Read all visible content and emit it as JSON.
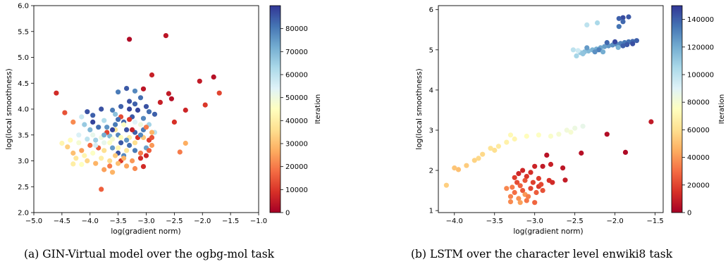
{
  "colors": {
    "colormap": [
      "#a50026",
      "#d73027",
      "#f46d43",
      "#fdae61",
      "#fee090",
      "#ffffbf",
      "#e0f3f8",
      "#abd9e9",
      "#74add1",
      "#4575b4",
      "#313695"
    ]
  },
  "captions": {
    "a": "(a) GIN-Virtual model over the ogbg-mol task",
    "b": "(b) LSTM over the character level enwiki8 task"
  },
  "chart_data": [
    {
      "type": "scatter",
      "xlabel": "log(gradient norm)",
      "ylabel": "log(local smoothness)",
      "xlim": [
        -5.0,
        -1.0
      ],
      "ylim": [
        2.0,
        6.0
      ],
      "xticks": [
        -5.0,
        -4.5,
        -4.0,
        -3.5,
        -3.0,
        -2.5,
        -2.0,
        -1.5,
        -1.0
      ],
      "xtick_labels": [
        "−5.0",
        "−4.5",
        "−4.0",
        "−3.5",
        "−3.0",
        "−2.5",
        "−2.0",
        "−1.5",
        "−1.0"
      ],
      "yticks": [
        2.0,
        2.5,
        3.0,
        3.5,
        4.0,
        4.5,
        5.0,
        5.5,
        6.0
      ],
      "ytick_labels": [
        "2.0",
        "2.5",
        "3.0",
        "3.5",
        "4.0",
        "4.5",
        "5.0",
        "5.5",
        "6.0"
      ],
      "grid": false,
      "colorbar": {
        "label": "Iteration",
        "range": [
          0,
          90000
        ],
        "ticks": [
          0,
          10000,
          20000,
          30000,
          40000,
          50000,
          60000,
          70000,
          80000
        ],
        "tick_labels": [
          "0",
          "10000",
          "20000",
          "30000",
          "40000",
          "50000",
          "60000",
          "70000",
          "80000"
        ]
      },
      "points": [
        [
          -3.3,
          5.35,
          2000
        ],
        [
          -2.65,
          5.42,
          4000
        ],
        [
          -2.9,
          4.66,
          6000
        ],
        [
          -1.8,
          4.62,
          3000
        ],
        [
          -2.05,
          4.54,
          5000
        ],
        [
          -4.6,
          4.31,
          8000
        ],
        [
          -1.7,
          4.31,
          12000
        ],
        [
          -2.6,
          4.3,
          5000
        ],
        [
          -2.55,
          4.2,
          3000
        ],
        [
          -2.75,
          4.13,
          6000
        ],
        [
          -3.05,
          4.39,
          4000
        ],
        [
          -1.95,
          4.08,
          10000
        ],
        [
          -2.3,
          3.98,
          7000
        ],
        [
          -2.5,
          3.75,
          9000
        ],
        [
          -2.3,
          3.34,
          27000
        ],
        [
          -2.4,
          3.17,
          20000
        ],
        [
          -4.45,
          3.93,
          14000
        ],
        [
          -4.3,
          3.75,
          22000
        ],
        [
          -3.05,
          2.89,
          8000
        ],
        [
          -3.8,
          2.45,
          16000
        ],
        [
          -3.75,
          2.83,
          25000
        ],
        [
          -3.6,
          2.78,
          28000
        ],
        [
          -4.3,
          2.94,
          40000
        ],
        [
          -4.15,
          2.93,
          45000
        ],
        [
          -4.5,
          3.34,
          42000
        ],
        [
          -3.35,
          4.4,
          85000
        ],
        [
          -3.5,
          4.33,
          80000
        ],
        [
          -3.2,
          4.35,
          78000
        ],
        [
          -3.1,
          4.22,
          82000
        ],
        [
          -3.3,
          4.15,
          86000
        ],
        [
          -3.45,
          4.05,
          84000
        ],
        [
          -3.6,
          3.98,
          80000
        ],
        [
          -3.8,
          4.0,
          86000
        ],
        [
          -3.95,
          3.88,
          84000
        ],
        [
          -3.15,
          3.98,
          88000
        ],
        [
          -2.95,
          3.95,
          82000
        ],
        [
          -3.05,
          3.82,
          78000
        ],
        [
          -3.25,
          3.85,
          85000
        ],
        [
          -3.4,
          3.75,
          83000
        ],
        [
          -3.55,
          3.7,
          80000
        ],
        [
          -3.7,
          3.65,
          76000
        ],
        [
          -3.85,
          3.65,
          82000
        ],
        [
          -4.0,
          3.6,
          70000
        ],
        [
          -3.35,
          3.6,
          86000
        ],
        [
          -3.2,
          3.55,
          84000
        ],
        [
          -3.05,
          3.6,
          80000
        ],
        [
          -3.5,
          3.5,
          78000
        ],
        [
          -3.65,
          3.48,
          70000
        ],
        [
          -3.45,
          3.35,
          85000
        ],
        [
          -3.3,
          3.3,
          82000
        ],
        [
          -3.6,
          3.25,
          75000
        ],
        [
          -3.2,
          3.2,
          80000
        ],
        [
          -3.5,
          3.15,
          86000
        ],
        [
          -3.4,
          3.1,
          78000
        ],
        [
          -3.0,
          3.25,
          74000
        ],
        [
          -3.9,
          3.4,
          65000
        ],
        [
          -4.05,
          3.42,
          60000
        ],
        [
          -4.2,
          3.5,
          55000
        ],
        [
          -4.1,
          3.7,
          66000
        ],
        [
          -4.15,
          3.85,
          58000
        ],
        [
          -3.75,
          3.78,
          62000
        ],
        [
          -3.55,
          3.9,
          68000
        ],
        [
          -2.95,
          3.7,
          64000
        ],
        [
          -2.85,
          3.55,
          60000
        ],
        [
          -3.1,
          3.7,
          50000
        ],
        [
          -3.25,
          3.6,
          6000
        ],
        [
          -3.15,
          3.45,
          9000
        ],
        [
          -2.95,
          3.4,
          11000
        ],
        [
          -3.45,
          3.0,
          10000
        ],
        [
          -3.1,
          3.05,
          8000
        ],
        [
          -3.0,
          3.1,
          7000
        ],
        [
          -3.7,
          3.55,
          12000
        ],
        [
          -3.85,
          3.25,
          15000
        ],
        [
          -4.0,
          3.3,
          18000
        ],
        [
          -4.15,
          3.2,
          25000
        ],
        [
          -4.3,
          3.15,
          30000
        ],
        [
          -4.4,
          3.27,
          33000
        ],
        [
          -4.25,
          3.05,
          38000
        ],
        [
          -4.1,
          3.1,
          42000
        ],
        [
          -3.95,
          3.15,
          46000
        ],
        [
          -3.8,
          3.05,
          40000
        ],
        [
          -3.65,
          3.0,
          35000
        ],
        [
          -3.5,
          2.95,
          30000
        ],
        [
          -3.35,
          2.9,
          26000
        ],
        [
          -3.2,
          2.85,
          22000
        ],
        [
          -3.65,
          2.9,
          20000
        ],
        [
          -3.9,
          2.95,
          28000
        ],
        [
          -4.05,
          3.0,
          34000
        ],
        [
          -4.2,
          3.35,
          48000
        ],
        [
          -4.35,
          3.4,
          44000
        ],
        [
          -3.95,
          3.5,
          52000
        ],
        [
          -3.8,
          3.45,
          50000
        ],
        [
          -3.65,
          3.35,
          46000
        ],
        [
          -3.5,
          3.25,
          42000
        ],
        [
          -3.35,
          3.2,
          38000
        ],
        [
          -3.2,
          3.35,
          36000
        ],
        [
          -3.05,
          3.45,
          32000
        ],
        [
          -2.9,
          3.55,
          28000
        ],
        [
          -2.9,
          3.3,
          24000
        ],
        [
          -3.0,
          3.65,
          20000
        ],
        [
          -3.3,
          3.45,
          40000
        ],
        [
          -3.45,
          3.45,
          44000
        ],
        [
          -3.6,
          3.42,
          48000
        ],
        [
          -3.75,
          3.35,
          52000
        ],
        [
          -3.9,
          3.3,
          56000
        ],
        [
          -3.75,
          3.2,
          36000
        ],
        [
          -3.55,
          3.1,
          32000
        ],
        [
          -3.4,
          3.05,
          28000
        ],
        [
          -3.25,
          3.0,
          24000
        ],
        [
          -3.1,
          3.15,
          20000
        ],
        [
          -2.95,
          3.2,
          16000
        ],
        [
          -2.9,
          3.45,
          14000
        ],
        [
          -3.3,
          3.8,
          10000
        ],
        [
          -3.45,
          3.85,
          13000
        ],
        [
          -3.55,
          3.6,
          38000
        ],
        [
          -3.4,
          3.7,
          46000
        ],
        [
          -3.2,
          3.75,
          54000
        ],
        [
          -3.95,
          3.75,
          88000
        ],
        [
          -4.05,
          3.95,
          86000
        ],
        [
          -3.3,
          4.0,
          88000
        ],
        [
          -3.2,
          4.1,
          84000
        ],
        [
          -3.0,
          4.05,
          86000
        ],
        [
          -2.85,
          3.9,
          84000
        ],
        [
          -3.5,
          3.8,
          82000
        ],
        [
          -3.1,
          3.5,
          78000
        ],
        [
          -3.35,
          3.4,
          76000
        ],
        [
          -3.75,
          3.5,
          72000
        ],
        [
          -3.6,
          3.6,
          88000
        ]
      ]
    },
    {
      "type": "scatter",
      "xlabel": "log(gradient norm)",
      "ylabel": "log(local smoothness)",
      "xlim": [
        -4.2,
        -1.4
      ],
      "ylim": [
        0.95,
        6.1
      ],
      "xticks": [
        -4.0,
        -3.5,
        -3.0,
        -2.5,
        -2.0,
        -1.5
      ],
      "xtick_labels": [
        "−4.0",
        "−3.5",
        "−3.0",
        "−2.5",
        "−2.0",
        "−1.5"
      ],
      "yticks": [
        1,
        2,
        3,
        4,
        5,
        6
      ],
      "ytick_labels": [
        "1",
        "2",
        "3",
        "4",
        "5",
        "6"
      ],
      "grid": false,
      "colorbar": {
        "label": "Iteration",
        "range": [
          0,
          150000
        ],
        "ticks": [
          0,
          20000,
          40000,
          60000,
          80000,
          100000,
          120000,
          140000
        ],
        "tick_labels": [
          "0",
          "20000",
          "40000",
          "60000",
          "80000",
          "100000",
          "120000",
          "140000"
        ]
      },
      "points": [
        [
          -1.9,
          5.8,
          145000
        ],
        [
          -1.95,
          5.78,
          140000
        ],
        [
          -1.83,
          5.82,
          142000
        ],
        [
          -1.9,
          5.7,
          138000
        ],
        [
          -1.95,
          5.58,
          135000
        ],
        [
          -2.35,
          5.62,
          100000
        ],
        [
          -2.22,
          5.67,
          105000
        ],
        [
          -1.73,
          5.23,
          140000
        ],
        [
          -1.78,
          5.21,
          138000
        ],
        [
          -1.83,
          5.2,
          136000
        ],
        [
          -1.88,
          5.18,
          134000
        ],
        [
          -1.93,
          5.16,
          132000
        ],
        [
          -1.98,
          5.14,
          130000
        ],
        [
          -2.03,
          5.12,
          128000
        ],
        [
          -2.08,
          5.1,
          126000
        ],
        [
          -2.13,
          5.08,
          124000
        ],
        [
          -2.18,
          5.05,
          122000
        ],
        [
          -2.23,
          5.02,
          120000
        ],
        [
          -2.28,
          5.0,
          118000
        ],
        [
          -2.33,
          4.97,
          116000
        ],
        [
          -2.38,
          4.95,
          114000
        ],
        [
          -2.43,
          4.93,
          110000
        ],
        [
          -2.48,
          4.85,
          106000
        ],
        [
          -2.52,
          5.0,
          100000
        ],
        [
          -2.46,
          4.98,
          95000
        ],
        [
          -1.78,
          5.15,
          144000
        ],
        [
          -1.85,
          5.13,
          142000
        ],
        [
          -1.9,
          5.1,
          140000
        ],
        [
          -2.0,
          5.2,
          146000
        ],
        [
          -2.1,
          5.18,
          138000
        ],
        [
          -2.2,
          5.0,
          132000
        ],
        [
          -2.25,
          4.95,
          128000
        ],
        [
          -2.35,
          5.05,
          125000
        ],
        [
          -2.15,
          4.95,
          120000
        ],
        [
          -1.96,
          5.06,
          118000
        ],
        [
          -2.4,
          4.9,
          112000
        ],
        [
          -1.55,
          3.21,
          8000
        ],
        [
          -2.1,
          2.9,
          4000
        ],
        [
          -1.87,
          2.45,
          3000
        ],
        [
          -2.42,
          2.43,
          5000
        ],
        [
          -2.85,
          2.38,
          6000
        ],
        [
          -2.65,
          2.06,
          7000
        ],
        [
          -2.62,
          1.76,
          9000
        ],
        [
          -2.8,
          2.15,
          10000
        ],
        [
          -2.9,
          2.1,
          8000
        ],
        [
          -3.0,
          2.1,
          11000
        ],
        [
          -3.05,
          1.95,
          14000
        ],
        [
          -3.2,
          1.92,
          12000
        ],
        [
          -3.1,
          1.85,
          16000
        ],
        [
          -2.95,
          1.8,
          18000
        ],
        [
          -2.82,
          1.75,
          15000
        ],
        [
          -2.78,
          1.7,
          13000
        ],
        [
          -2.95,
          1.6,
          17000
        ],
        [
          -3.05,
          1.55,
          20000
        ],
        [
          -3.15,
          1.5,
          25000
        ],
        [
          -3.25,
          1.45,
          30000
        ],
        [
          -3.3,
          1.35,
          35000
        ],
        [
          -3.2,
          1.3,
          38000
        ],
        [
          -3.1,
          1.25,
          32000
        ],
        [
          -3.0,
          1.2,
          28000
        ],
        [
          -3.22,
          1.7,
          22000
        ],
        [
          -3.12,
          1.75,
          24000
        ],
        [
          -3.02,
          1.7,
          19000
        ],
        [
          -2.92,
          1.65,
          21000
        ],
        [
          -3.18,
          1.62,
          27000
        ],
        [
          -3.28,
          1.58,
          33000
        ],
        [
          -3.35,
          1.55,
          36000
        ],
        [
          -3.12,
          1.4,
          40000
        ],
        [
          -3.18,
          1.2,
          42000
        ],
        [
          -3.3,
          1.22,
          37000
        ],
        [
          -3.08,
          1.35,
          34000
        ],
        [
          -2.98,
          1.45,
          26000
        ],
        [
          -2.9,
          1.5,
          23000
        ],
        [
          -3.25,
          1.82,
          18000
        ],
        [
          -3.15,
          2.0,
          12000
        ],
        [
          -4.1,
          1.63,
          55000
        ],
        [
          -3.95,
          2.02,
          50000
        ],
        [
          -4.0,
          2.06,
          52000
        ],
        [
          -3.85,
          2.12,
          54000
        ],
        [
          -3.75,
          2.25,
          56000
        ],
        [
          -3.65,
          2.4,
          58000
        ],
        [
          -3.55,
          2.55,
          62000
        ],
        [
          -3.45,
          2.6,
          65000
        ],
        [
          -3.35,
          2.7,
          68000
        ],
        [
          -3.25,
          2.78,
          70000
        ],
        [
          -3.1,
          2.85,
          74000
        ],
        [
          -2.95,
          2.88,
          76000
        ],
        [
          -2.8,
          2.85,
          78000
        ],
        [
          -2.7,
          2.9,
          80000
        ],
        [
          -2.6,
          3.0,
          82000
        ],
        [
          -2.5,
          3.05,
          84000
        ],
        [
          -2.4,
          3.1,
          86000
        ],
        [
          -2.55,
          2.95,
          80000
        ],
        [
          -3.3,
          2.88,
          72000
        ],
        [
          -3.7,
          2.3,
          58000
        ],
        [
          -3.5,
          2.5,
          60000
        ]
      ]
    }
  ]
}
